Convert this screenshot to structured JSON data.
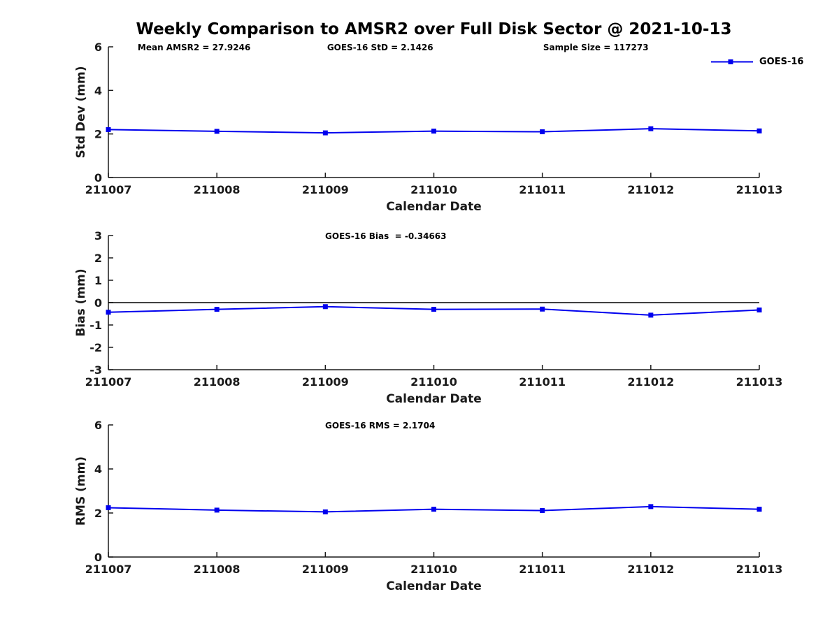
{
  "chart_data": [
    {
      "type": "line",
      "name": "std-dev",
      "title": "Weekly Comparison to AMSR2 over Full Disk Sector @ 2021-10-13",
      "annotations": [
        "Mean AMSR2 = 27.9246",
        "GOES-16 StD = 2.1426",
        "Sample Size = 117273"
      ],
      "categories": [
        "211007",
        "211008",
        "211009",
        "211010",
        "211011",
        "211012",
        "211013"
      ],
      "series": [
        {
          "name": "GOES-16",
          "color": "#0000ee",
          "marker": "square",
          "values": [
            2.2,
            2.12,
            2.05,
            2.13,
            2.1,
            2.24,
            2.14
          ]
        }
      ],
      "xlabel": "Calendar Date",
      "ylabel": "Std Dev (mm)",
      "ylim": [
        0,
        6
      ],
      "yticks": [
        0,
        2,
        4,
        6
      ],
      "grid": false,
      "zero_line": false,
      "legend": {
        "position": "top-right",
        "entries": [
          "GOES-16"
        ]
      }
    },
    {
      "type": "line",
      "name": "bias",
      "title": "",
      "annotations": [
        "GOES-16 Bias  = -0.34663"
      ],
      "categories": [
        "211007",
        "211008",
        "211009",
        "211010",
        "211011",
        "211012",
        "211013"
      ],
      "series": [
        {
          "name": "GOES-16",
          "color": "#0000ee",
          "marker": "square",
          "values": [
            -0.43,
            -0.3,
            -0.18,
            -0.3,
            -0.29,
            -0.56,
            -0.33
          ]
        }
      ],
      "xlabel": "Calendar Date",
      "ylabel": "Bias (mm)",
      "ylim": [
        -3,
        3
      ],
      "yticks": [
        3,
        2,
        1,
        0,
        -1,
        -2,
        -3
      ],
      "grid": false,
      "zero_line": true
    },
    {
      "type": "line",
      "name": "rms",
      "title": "",
      "annotations": [
        "GOES-16 RMS = 2.1704"
      ],
      "categories": [
        "211007",
        "211008",
        "211009",
        "211010",
        "211011",
        "211012",
        "211013"
      ],
      "series": [
        {
          "name": "GOES-16",
          "color": "#0000ee",
          "marker": "square",
          "values": [
            2.24,
            2.13,
            2.05,
            2.17,
            2.11,
            2.29,
            2.17
          ]
        }
      ],
      "xlabel": "Calendar Date",
      "ylabel": "RMS (mm)",
      "ylim": [
        0,
        6
      ],
      "yticks": [
        0,
        2,
        4,
        6
      ],
      "grid": false,
      "zero_line": false
    }
  ]
}
